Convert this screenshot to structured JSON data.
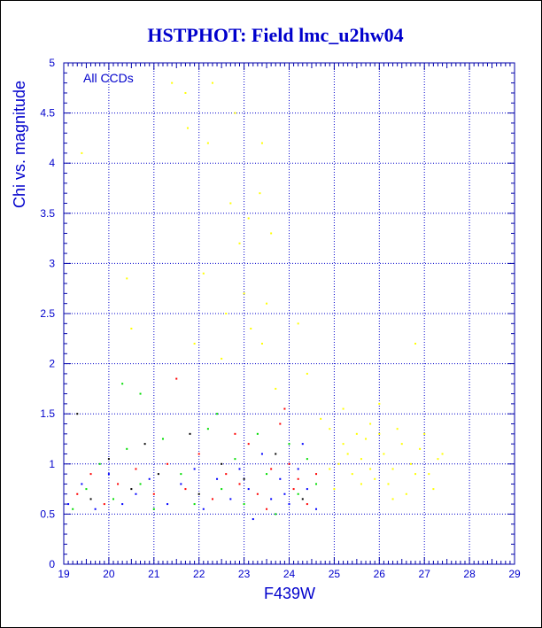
{
  "chart_data": {
    "type": "scatter",
    "title": "HSTPHOT: Field lmc_u2hw04",
    "xlabel": "F439W",
    "ylabel": "Chi vs. magnitude",
    "annotation": "All CCDs",
    "xlim": [
      19,
      29
    ],
    "ylim": [
      0,
      5
    ],
    "x_ticks": [
      "19",
      "20",
      "21",
      "22",
      "23",
      "24",
      "25",
      "26",
      "27",
      "28",
      "29"
    ],
    "y_ticks": [
      "0",
      "0.5",
      "1",
      "1.5",
      "2",
      "2.5",
      "3",
      "3.5",
      "4",
      "4.5",
      "5"
    ],
    "grid": true,
    "legend": "none",
    "colors": {
      "text": "#0000cc",
      "frame": "#0000aa",
      "grid": "#0000cc",
      "ccd_yellow": "#ffff00",
      "ccd_red": "#ff0000",
      "ccd_green": "#00dd00",
      "ccd_blue": "#0000ff",
      "ccd_black": "#000000"
    },
    "series": [
      {
        "color": "ccd_yellow",
        "points": [
          [
            19.4,
            4.1
          ],
          [
            21.4,
            4.8
          ],
          [
            21.7,
            4.7
          ],
          [
            21.75,
            4.35
          ],
          [
            22.2,
            4.2
          ],
          [
            22.3,
            4.8
          ],
          [
            22.8,
            4.5
          ],
          [
            23.4,
            4.2
          ],
          [
            22.7,
            3.6
          ],
          [
            23.1,
            3.45
          ],
          [
            23.35,
            3.7
          ],
          [
            23.6,
            3.3
          ],
          [
            22.9,
            3.2
          ],
          [
            22.1,
            2.9
          ],
          [
            23.0,
            2.7
          ],
          [
            23.5,
            2.6
          ],
          [
            22.6,
            2.5
          ],
          [
            23.15,
            2.35
          ],
          [
            24.2,
            2.4
          ],
          [
            23.4,
            2.2
          ],
          [
            22.5,
            2.05
          ],
          [
            20.4,
            2.85
          ],
          [
            20.5,
            2.35
          ],
          [
            21.9,
            2.2
          ],
          [
            23.7,
            1.75
          ],
          [
            24.4,
            1.9
          ],
          [
            26.8,
            2.2
          ],
          [
            26.0,
            1.6
          ],
          [
            24.9,
            1.35
          ],
          [
            25.2,
            1.2
          ],
          [
            25.5,
            1.3
          ],
          [
            25.6,
            1.05
          ],
          [
            25.8,
            1.4
          ],
          [
            26.1,
            1.1
          ],
          [
            26.3,
            0.95
          ],
          [
            26.5,
            1.2
          ],
          [
            26.7,
            1.0
          ],
          [
            26.9,
            1.15
          ],
          [
            27.1,
            0.9
          ],
          [
            27.3,
            1.05
          ],
          [
            26.2,
            0.8
          ],
          [
            25.4,
            0.9
          ],
          [
            25.1,
            1.0
          ],
          [
            25.9,
            0.85
          ],
          [
            26.6,
            0.7
          ],
          [
            24.9,
            0.95
          ],
          [
            25.3,
            1.1
          ],
          [
            25.7,
            1.25
          ],
          [
            26.4,
            1.35
          ],
          [
            27.0,
            1.3
          ],
          [
            25.0,
            0.75
          ],
          [
            25.6,
            0.8
          ],
          [
            26.0,
            1.3
          ],
          [
            26.8,
            0.9
          ],
          [
            24.7,
            1.45
          ],
          [
            25.2,
            1.55
          ],
          [
            27.4,
            1.1
          ],
          [
            27.2,
            0.75
          ],
          [
            26.3,
            0.65
          ],
          [
            25.8,
            0.95
          ]
        ]
      },
      {
        "color": "ccd_red",
        "points": [
          [
            19.3,
            0.7
          ],
          [
            19.6,
            0.9
          ],
          [
            19.9,
            0.6
          ],
          [
            20.2,
            0.8
          ],
          [
            20.6,
            0.95
          ],
          [
            21.0,
            0.7
          ],
          [
            21.3,
            1.0
          ],
          [
            21.7,
            0.75
          ],
          [
            22.0,
            1.1
          ],
          [
            22.3,
            0.65
          ],
          [
            22.6,
            0.9
          ],
          [
            22.9,
            0.8
          ],
          [
            23.1,
            1.2
          ],
          [
            23.3,
            0.7
          ],
          [
            23.6,
            0.95
          ],
          [
            23.8,
            1.4
          ],
          [
            24.0,
            1.0
          ],
          [
            24.2,
            0.85
          ],
          [
            24.4,
            0.6
          ],
          [
            24.6,
            0.9
          ],
          [
            23.9,
            1.55
          ],
          [
            21.5,
            1.85
          ],
          [
            22.8,
            1.3
          ],
          [
            23.5,
            0.55
          ],
          [
            24.1,
            0.75
          ]
        ]
      },
      {
        "color": "ccd_green",
        "points": [
          [
            19.2,
            0.55
          ],
          [
            19.5,
            0.75
          ],
          [
            19.8,
            1.0
          ],
          [
            20.1,
            0.65
          ],
          [
            20.4,
            1.15
          ],
          [
            20.7,
            0.8
          ],
          [
            21.0,
            0.55
          ],
          [
            21.2,
            1.25
          ],
          [
            21.6,
            0.9
          ],
          [
            21.9,
            0.6
          ],
          [
            22.2,
            1.35
          ],
          [
            22.5,
            0.75
          ],
          [
            22.8,
            1.05
          ],
          [
            23.0,
            0.6
          ],
          [
            23.3,
            1.3
          ],
          [
            23.5,
            0.9
          ],
          [
            23.7,
            0.5
          ],
          [
            24.0,
            1.2
          ],
          [
            24.2,
            0.7
          ],
          [
            24.4,
            1.05
          ],
          [
            24.6,
            0.8
          ],
          [
            20.3,
            1.8
          ],
          [
            20.7,
            1.7
          ],
          [
            22.4,
            1.5
          ]
        ]
      },
      {
        "color": "ccd_blue",
        "points": [
          [
            19.1,
            0.6
          ],
          [
            19.4,
            0.8
          ],
          [
            19.7,
            0.55
          ],
          [
            20.0,
            0.9
          ],
          [
            20.3,
            0.6
          ],
          [
            20.6,
            0.7
          ],
          [
            20.9,
            0.85
          ],
          [
            21.3,
            0.6
          ],
          [
            21.6,
            0.8
          ],
          [
            21.9,
            0.95
          ],
          [
            22.1,
            0.55
          ],
          [
            22.4,
            0.85
          ],
          [
            22.7,
            0.65
          ],
          [
            22.9,
            0.95
          ],
          [
            23.1,
            0.75
          ],
          [
            23.4,
            1.1
          ],
          [
            23.6,
            0.65
          ],
          [
            23.8,
            0.85
          ],
          [
            24.0,
            0.6
          ],
          [
            24.2,
            0.95
          ],
          [
            24.4,
            0.75
          ],
          [
            24.6,
            0.55
          ],
          [
            23.2,
            0.45
          ],
          [
            24.3,
            1.2
          ],
          [
            23.9,
            0.7
          ]
        ]
      },
      {
        "color": "ccd_black",
        "points": [
          [
            19.3,
            1.5
          ],
          [
            19.6,
            0.65
          ],
          [
            20.0,
            1.05
          ],
          [
            20.5,
            0.75
          ],
          [
            21.1,
            0.9
          ],
          [
            21.8,
            1.3
          ],
          [
            22.5,
            1.0
          ],
          [
            23.0,
            0.85
          ],
          [
            23.7,
            1.1
          ],
          [
            24.3,
            0.65
          ],
          [
            22.0,
            0.7
          ],
          [
            20.8,
            1.2
          ]
        ]
      }
    ]
  }
}
